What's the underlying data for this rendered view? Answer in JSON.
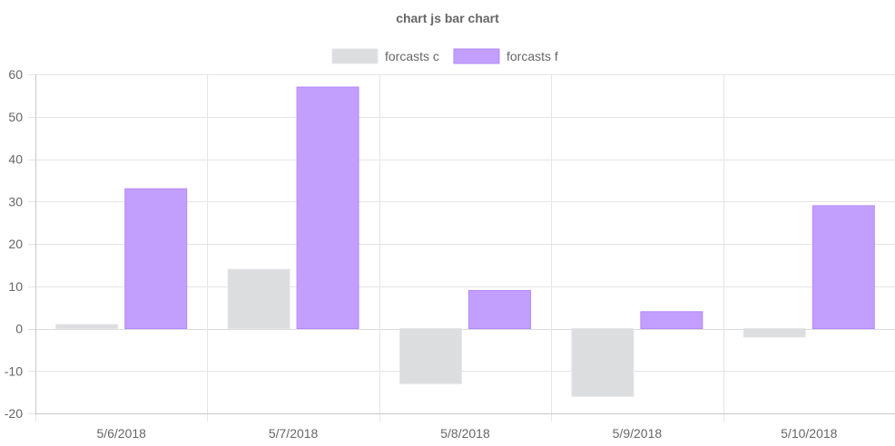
{
  "chart_data": {
    "type": "bar",
    "title": "chart js bar chart",
    "categories": [
      "5/6/2018",
      "5/7/2018",
      "5/8/2018",
      "5/9/2018",
      "5/10/2018"
    ],
    "series": [
      {
        "name": "forcasts c",
        "values": [
          1,
          14,
          -13,
          -16,
          -2
        ],
        "fill": "#dcdddf",
        "stroke": "#e6e6e8"
      },
      {
        "name": "forcasts f",
        "values": [
          33,
          57,
          9,
          4,
          29
        ],
        "fill": "#c29ffd",
        "stroke": "#b38afc"
      }
    ],
    "ylim": [
      -20,
      60
    ],
    "yticks": [
      60,
      50,
      40,
      30,
      20,
      10,
      0,
      -10,
      -20
    ],
    "xlabel": "",
    "ylabel": "",
    "grid": true,
    "legend_position": "top-center"
  },
  "colors": {
    "grid": "#e5e5e5",
    "axis": "#c8c8c8",
    "text": "#666666"
  }
}
